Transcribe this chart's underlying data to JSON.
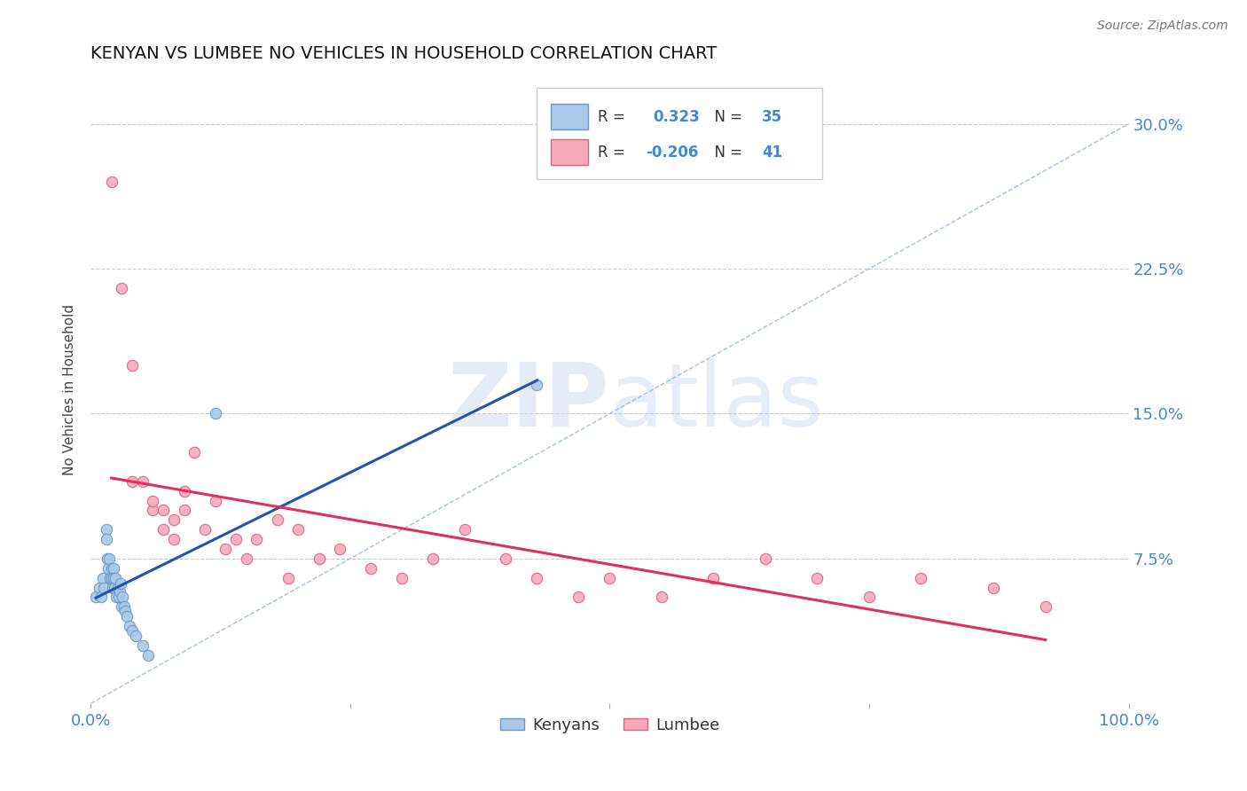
{
  "title": "KENYAN VS LUMBEE NO VEHICLES IN HOUSEHOLD CORRELATION CHART",
  "source": "Source: ZipAtlas.com",
  "ylabel": "No Vehicles in Household",
  "xlim": [
    0.0,
    1.0
  ],
  "ylim": [
    0.0,
    0.325
  ],
  "xticks": [
    0.0,
    0.25,
    0.5,
    0.75,
    1.0
  ],
  "xtick_labels": [
    "0.0%",
    "",
    "",
    "",
    "100.0%"
  ],
  "ytick_labels": [
    "7.5%",
    "15.0%",
    "22.5%",
    "30.0%"
  ],
  "yticks": [
    0.075,
    0.15,
    0.225,
    0.3
  ],
  "kenyan_color": "#aac8e8",
  "lumbee_color": "#f5aabc",
  "kenyan_edge_color": "#6699cc",
  "lumbee_edge_color": "#e06080",
  "kenyan_line_color": "#2255aa",
  "lumbee_line_color": "#e03060",
  "diag_line_color": "#99bbdd",
  "legend_R_kenyan": "0.323",
  "legend_N_kenyan": "35",
  "legend_R_lumbee": "-0.206",
  "legend_N_lumbee": "41",
  "kenyan_x": [
    0.005,
    0.008,
    0.01,
    0.012,
    0.013,
    0.015,
    0.015,
    0.016,
    0.017,
    0.018,
    0.019,
    0.02,
    0.02,
    0.021,
    0.022,
    0.022,
    0.023,
    0.024,
    0.025,
    0.026,
    0.027,
    0.028,
    0.029,
    0.03,
    0.031,
    0.032,
    0.033,
    0.035,
    0.037,
    0.04,
    0.043,
    0.05,
    0.055,
    0.12,
    0.43
  ],
  "kenyan_y": [
    0.055,
    0.06,
    0.055,
    0.065,
    0.06,
    0.09,
    0.085,
    0.075,
    0.07,
    0.075,
    0.065,
    0.07,
    0.065,
    0.06,
    0.07,
    0.065,
    0.06,
    0.065,
    0.055,
    0.06,
    0.055,
    0.058,
    0.062,
    0.05,
    0.055,
    0.05,
    0.048,
    0.045,
    0.04,
    0.038,
    0.035,
    0.03,
    0.025,
    0.15,
    0.165
  ],
  "lumbee_x": [
    0.02,
    0.03,
    0.04,
    0.04,
    0.05,
    0.06,
    0.06,
    0.07,
    0.07,
    0.08,
    0.08,
    0.09,
    0.09,
    0.1,
    0.11,
    0.12,
    0.13,
    0.14,
    0.15,
    0.16,
    0.18,
    0.19,
    0.2,
    0.22,
    0.24,
    0.27,
    0.3,
    0.33,
    0.36,
    0.4,
    0.43,
    0.47,
    0.5,
    0.55,
    0.6,
    0.65,
    0.7,
    0.75,
    0.8,
    0.87,
    0.92
  ],
  "lumbee_y": [
    0.27,
    0.215,
    0.175,
    0.115,
    0.115,
    0.1,
    0.105,
    0.09,
    0.1,
    0.085,
    0.095,
    0.11,
    0.1,
    0.13,
    0.09,
    0.105,
    0.08,
    0.085,
    0.075,
    0.085,
    0.095,
    0.065,
    0.09,
    0.075,
    0.08,
    0.07,
    0.065,
    0.075,
    0.09,
    0.075,
    0.065,
    0.055,
    0.065,
    0.055,
    0.065,
    0.075,
    0.065,
    0.055,
    0.065,
    0.06,
    0.05
  ],
  "watermark_zip": "ZIP",
  "watermark_atlas": "atlas",
  "background_color": "#ffffff",
  "grid_color": "#cccccc",
  "title_color": "#111111",
  "axis_label_color": "#444444",
  "tick_color": "#4488cc",
  "marker_size": 80
}
